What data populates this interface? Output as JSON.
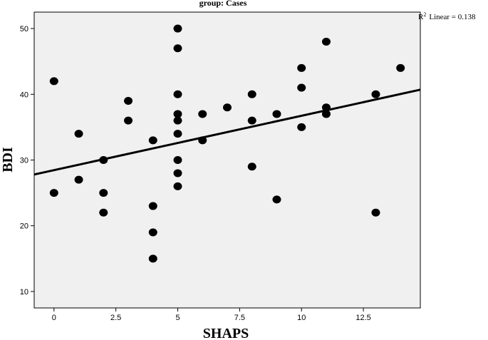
{
  "chart_data": {
    "type": "scatter",
    "title": "group: Cases",
    "xlabel": "SHAPS",
    "ylabel": "BDI",
    "xlim": [
      -0.8,
      14.8
    ],
    "ylim": [
      7.5,
      52.5
    ],
    "x_ticks": [
      0,
      2.5,
      5,
      7.5,
      10,
      12.5
    ],
    "x_tick_labels": [
      "0",
      "2.5",
      "5",
      "7.5",
      "10",
      "12.5"
    ],
    "y_ticks": [
      10,
      20,
      30,
      40,
      50
    ],
    "y_tick_labels": [
      "10",
      "20",
      "30",
      "40",
      "50"
    ],
    "grid": false,
    "plot_background": "#f0f0f0",
    "marker_color": "#000000",
    "fit_line": {
      "type": "linear",
      "label_prefix": "R",
      "label_superscript": "2",
      "label_suffix": "Linear = 0.138",
      "y_at_xmin": 27.8,
      "y_at_xmax": 40.7
    },
    "points": [
      {
        "x": 0,
        "y": 42
      },
      {
        "x": 0,
        "y": 25
      },
      {
        "x": 1,
        "y": 34
      },
      {
        "x": 1,
        "y": 27
      },
      {
        "x": 2,
        "y": 30
      },
      {
        "x": 2,
        "y": 25
      },
      {
        "x": 2,
        "y": 22
      },
      {
        "x": 3,
        "y": 39
      },
      {
        "x": 3,
        "y": 36
      },
      {
        "x": 4,
        "y": 33
      },
      {
        "x": 4,
        "y": 23
      },
      {
        "x": 4,
        "y": 19
      },
      {
        "x": 4,
        "y": 15
      },
      {
        "x": 5,
        "y": 50
      },
      {
        "x": 5,
        "y": 47
      },
      {
        "x": 5,
        "y": 40
      },
      {
        "x": 5,
        "y": 37
      },
      {
        "x": 5,
        "y": 36
      },
      {
        "x": 5,
        "y": 34
      },
      {
        "x": 5,
        "y": 30
      },
      {
        "x": 5,
        "y": 28
      },
      {
        "x": 5,
        "y": 26
      },
      {
        "x": 6,
        "y": 37
      },
      {
        "x": 6,
        "y": 33
      },
      {
        "x": 7,
        "y": 38
      },
      {
        "x": 8,
        "y": 40
      },
      {
        "x": 8,
        "y": 36
      },
      {
        "x": 8,
        "y": 29
      },
      {
        "x": 9,
        "y": 37
      },
      {
        "x": 9,
        "y": 24
      },
      {
        "x": 10,
        "y": 44
      },
      {
        "x": 10,
        "y": 41
      },
      {
        "x": 10,
        "y": 35
      },
      {
        "x": 11,
        "y": 48
      },
      {
        "x": 11,
        "y": 38
      },
      {
        "x": 11,
        "y": 37
      },
      {
        "x": 13,
        "y": 40
      },
      {
        "x": 13,
        "y": 22
      },
      {
        "x": 14,
        "y": 44
      }
    ]
  }
}
